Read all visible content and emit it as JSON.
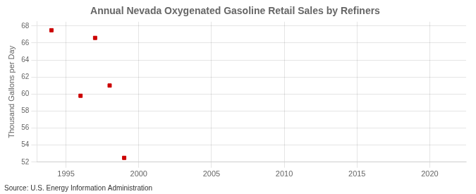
{
  "chart_data": {
    "type": "scatter",
    "title": "Annual Nevada Oxygenated Gasoline Retail Sales by Refiners",
    "ylabel": "Thousand Gallons per Day",
    "source": "Source: U.S. Energy Information Administration",
    "x": [
      1994,
      1996,
      1997,
      1998,
      1999
    ],
    "values": [
      67.5,
      59.8,
      66.6,
      61.0,
      52.5
    ],
    "color": "#cc0000",
    "marker": "square",
    "xlim": [
      1993,
      2022.5
    ],
    "ylim": [
      52,
      68.5
    ],
    "xticks": [
      1995,
      2000,
      2005,
      2010,
      2015,
      2020
    ],
    "yticks": [
      52,
      54,
      56,
      58,
      60,
      62,
      64,
      66,
      68
    ],
    "grid": true
  }
}
